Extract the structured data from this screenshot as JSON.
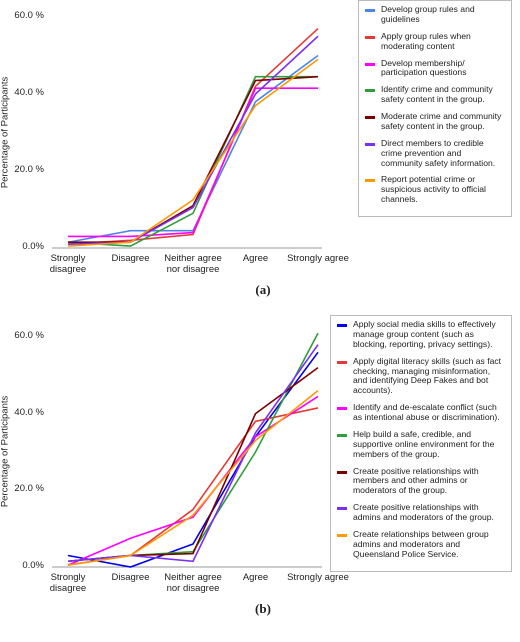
{
  "chart_data": [
    {
      "type": "line",
      "caption": "(a)",
      "y_label": "Percentage of Participants",
      "categories": [
        "Strongly disagree",
        "Disagree",
        "Neither agree nor disagree",
        "Agree",
        "Strongly agree"
      ],
      "ylim": [
        0,
        60
      ],
      "yticks": [
        {
          "value": 0,
          "label": "0.0%"
        },
        {
          "value": 20,
          "label": "20.0 %"
        },
        {
          "value": 40,
          "label": "40.0 %"
        },
        {
          "value": 60,
          "label": "60.0 %"
        }
      ],
      "grid": false,
      "series": [
        {
          "name": "Develop group rules and guidelines",
          "color": "#4a86e8",
          "values": [
            1.5,
            4.5,
            4.5,
            38,
            50
          ]
        },
        {
          "name": "Apply group rules when moderating content",
          "color": "#e53935",
          "values": [
            1,
            2,
            3.5,
            42,
            57
          ]
        },
        {
          "name": "Develop membership/ participation questions",
          "color": "#ff00ff",
          "values": [
            3,
            3,
            4,
            41.5,
            41.5
          ]
        },
        {
          "name": "Identify crime and community safety content in the group.",
          "color": "#2e9e3a",
          "values": [
            1.5,
            0.5,
            9,
            44.5,
            44.5
          ]
        },
        {
          "name": "Moderate crime and community safety content in the group.",
          "color": "#7b0000",
          "values": [
            1.5,
            1.5,
            11,
            43.5,
            44.5
          ]
        },
        {
          "name": "Direct members to credible crime prevention and community safety information.",
          "color": "#7b2ff7",
          "values": [
            1,
            1.5,
            10.5,
            40,
            55
          ]
        },
        {
          "name": "Report potential crime or suspicious activity to official channels.",
          "color": "#ff9900",
          "values": [
            0.5,
            1.5,
            12.5,
            37,
            49
          ]
        }
      ]
    },
    {
      "type": "line",
      "caption": "(b)",
      "y_label": "Percentage of Participants",
      "categories": [
        "Strongly disagree",
        "Disagree",
        "Neither agree nor disagree",
        "Agree",
        "Strongly agree"
      ],
      "ylim": [
        0,
        60
      ],
      "yticks": [
        {
          "value": 0,
          "label": "0.0%"
        },
        {
          "value": 20,
          "label": "20.0 %"
        },
        {
          "value": 40,
          "label": "40.0 %"
        },
        {
          "value": 60,
          "label": "60.0 %"
        }
      ],
      "grid": false,
      "series": [
        {
          "name": "Apply social media skills to effectively manage group content (such as blocking, reporting, privacy settings).",
          "color": "#0000ee",
          "values": [
            3,
            0,
            6,
            34,
            56
          ]
        },
        {
          "name": "Apply digital literacy skills (such as fact checking, managing misinformation, and identifying Deep Fakes and bot accounts).",
          "color": "#e53935",
          "values": [
            0.5,
            3,
            15,
            38,
            41.5
          ]
        },
        {
          "name": " Identify and de-escalate conflict (such as intentional abuse or discrimination).",
          "color": "#ff00ff",
          "values": [
            0.5,
            7.5,
            13,
            34,
            44.5
          ]
        },
        {
          "name": "Help build a safe, credible, and supportive online environment for the members of the group.",
          "color": "#2e9e3a",
          "values": [
            1.5,
            3,
            4,
            30,
            61
          ]
        },
        {
          "name": "Create positive relationships with members and other admins or moderators of the group.",
          "color": "#7b0000",
          "values": [
            1.5,
            3,
            3.5,
            40,
            52
          ]
        },
        {
          "name": "Create positive relationships with admins and moderators of the group.",
          "color": "#7b2ff7",
          "values": [
            1.5,
            3,
            1.5,
            35,
            58
          ]
        },
        {
          "name": "Create relationships between group admins and moderators and Queensland Police Service.",
          "color": "#ff9900",
          "values": [
            0.5,
            3,
            13.5,
            33,
            46
          ]
        }
      ]
    }
  ]
}
